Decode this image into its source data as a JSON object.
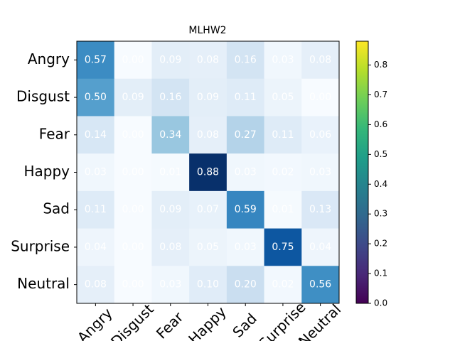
{
  "chart_data": {
    "type": "heatmap",
    "title": "MLHW2",
    "categories": [
      "Angry",
      "Disgust",
      "Fear",
      "Happy",
      "Sad",
      "Surprise",
      "Neutral"
    ],
    "values": [
      [
        0.57,
        0,
        0.09,
        0.08,
        0.16,
        0.03,
        0.08
      ],
      [
        0.5,
        0.09,
        0.16,
        0.09,
        0.11,
        0.05,
        0
      ],
      [
        0.14,
        0,
        0.34,
        0.08,
        0.27,
        0.11,
        0.06
      ],
      [
        0.03,
        0,
        0.01,
        0.88,
        0.03,
        0.02,
        0.03
      ],
      [
        0.11,
        0,
        0.09,
        0.07,
        0.59,
        0.01,
        0.13
      ],
      [
        0.04,
        0,
        0.08,
        0.05,
        0.03,
        0.75,
        0.04
      ],
      [
        0.08,
        0,
        0.03,
        0.1,
        0.2,
        0.02,
        0.56
      ]
    ],
    "value_labels": [
      [
        "0.57",
        "0.00",
        "0.09",
        "0.08",
        "0.16",
        "0.03",
        "0.08"
      ],
      [
        "0.50",
        "0.09",
        "0.16",
        "0.09",
        "0.11",
        "0.05",
        "0.00"
      ],
      [
        "0.14",
        "0.00",
        "0.34",
        "0.08",
        "0.27",
        "0.11",
        "0.06"
      ],
      [
        "0.03",
        "0.00",
        "0.01",
        "0.88",
        "0.03",
        "0.02",
        "0.03"
      ],
      [
        "0.11",
        "0.00",
        "0.09",
        "0.07",
        "0.59",
        "0.01",
        "0.13"
      ],
      [
        "0.04",
        "0.00",
        "0.08",
        "0.05",
        "0.03",
        "0.75",
        "0.04"
      ],
      [
        "0.08",
        "0.00",
        "0.03",
        "0.10",
        "0.20",
        "0.02",
        "0.56"
      ]
    ],
    "colormap": "Blues",
    "colorbar_colormap": "viridis",
    "clim": [
      0,
      0.88
    ],
    "cticks": [
      {
        "value": 0,
        "label": "0.0"
      },
      0.1,
      0.2,
      0.3,
      0.4,
      0.5,
      0.6,
      0.7,
      0.8
    ]
  }
}
